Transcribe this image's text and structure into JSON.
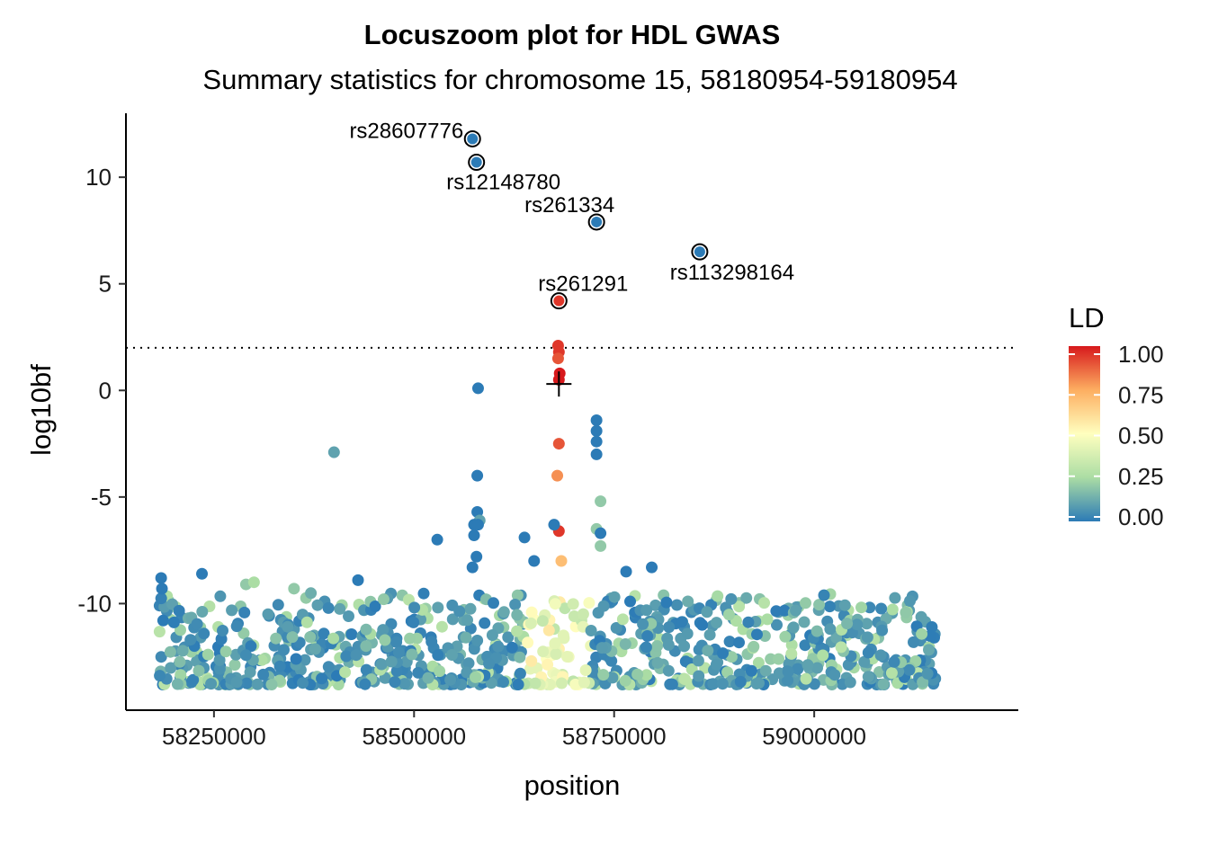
{
  "chart_data": {
    "type": "scatter",
    "title": "Locuszoom plot for HDL GWAS",
    "subtitle": "Summary statistics for chromosome 15, 58180954-59180954",
    "xlabel": "position",
    "ylabel": "log10bf",
    "xlim": [
      58140000,
      59255000
    ],
    "ylim": [
      -15,
      13
    ],
    "x_ticks": [
      58250000,
      58500000,
      58750000,
      59000000
    ],
    "x_tick_labels": [
      "58250000",
      "58500000",
      "58750000",
      "59000000"
    ],
    "y_ticks": [
      -10,
      -5,
      0,
      5,
      10
    ],
    "y_tick_labels": [
      "-10",
      "-5",
      "0",
      "5",
      "10"
    ],
    "threshold": 2,
    "grid": false,
    "legend": {
      "title": "LD",
      "position": "right",
      "ticks": [
        1.0,
        0.75,
        0.5,
        0.25,
        0.0
      ],
      "tick_labels": [
        "1.00",
        "0.75",
        "0.50",
        "0.25",
        "0.00"
      ],
      "palette": [
        "#2c7bb6",
        "#abdda4",
        "#ffffbf",
        "#fdae61",
        "#d7191c"
      ]
    },
    "lead_snp": {
      "x": 58681000,
      "y": 0.3
    },
    "labeled_points": [
      {
        "label": "rs28607776",
        "x": 58573000,
        "y": 11.8,
        "ld": 0.0
      },
      {
        "label": "rs12148780",
        "x": 58578000,
        "y": 10.7,
        "ld": 0.0
      },
      {
        "label": "rs261334",
        "x": 58728000,
        "y": 7.9,
        "ld": 0.0
      },
      {
        "label": "rs113298164",
        "x": 58857000,
        "y": 6.5,
        "ld": 0.0
      },
      {
        "label": "rs261291",
        "x": 58681000,
        "y": 4.2,
        "ld": 0.95
      }
    ],
    "points": [
      {
        "x": 58580000,
        "y": 0.1,
        "ld": 0.0
      },
      {
        "x": 58400000,
        "y": -2.9,
        "ld": 0.1
      },
      {
        "x": 58680000,
        "y": 2.1,
        "ld": 0.95
      },
      {
        "x": 58681000,
        "y": 1.8,
        "ld": 0.95
      },
      {
        "x": 58680000,
        "y": 1.5,
        "ld": 0.9
      },
      {
        "x": 58682000,
        "y": 0.8,
        "ld": 1.0
      },
      {
        "x": 58681000,
        "y": 0.5,
        "ld": 1.0
      },
      {
        "x": 58681000,
        "y": -2.5,
        "ld": 0.9
      },
      {
        "x": 58679000,
        "y": -4.0,
        "ld": 0.8
      },
      {
        "x": 58681000,
        "y": -6.6,
        "ld": 0.95
      },
      {
        "x": 58684000,
        "y": -8.0,
        "ld": 0.7
      },
      {
        "x": 58675000,
        "y": -6.3,
        "ld": 0.0
      },
      {
        "x": 58728000,
        "y": -1.4,
        "ld": 0.0
      },
      {
        "x": 58728000,
        "y": -1.9,
        "ld": 0.0
      },
      {
        "x": 58728000,
        "y": -2.4,
        "ld": 0.0
      },
      {
        "x": 58728000,
        "y": -3.0,
        "ld": 0.0
      },
      {
        "x": 58733000,
        "y": -5.2,
        "ld": 0.2
      },
      {
        "x": 58728000,
        "y": -6.5,
        "ld": 0.2
      },
      {
        "x": 58733000,
        "y": -6.7,
        "ld": 0.0
      },
      {
        "x": 58733000,
        "y": -7.3,
        "ld": 0.2
      },
      {
        "x": 58579000,
        "y": -4.0,
        "ld": 0.0
      },
      {
        "x": 58579000,
        "y": -5.7,
        "ld": 0.0
      },
      {
        "x": 58582000,
        "y": -6.1,
        "ld": 0.1
      },
      {
        "x": 58575000,
        "y": -6.3,
        "ld": 0.0
      },
      {
        "x": 58580000,
        "y": -6.3,
        "ld": 0.0
      },
      {
        "x": 58575000,
        "y": -6.8,
        "ld": 0.0
      },
      {
        "x": 58578000,
        "y": -7.8,
        "ld": 0.0
      },
      {
        "x": 58573000,
        "y": -8.3,
        "ld": 0.0
      },
      {
        "x": 58529000,
        "y": -7.0,
        "ld": 0.0
      },
      {
        "x": 58638000,
        "y": -6.9,
        "ld": 0.0
      },
      {
        "x": 58650000,
        "y": -8.0,
        "ld": 0.0
      },
      {
        "x": 58184000,
        "y": -8.8,
        "ld": 0.0
      },
      {
        "x": 58185000,
        "y": -9.3,
        "ld": 0.0
      },
      {
        "x": 58235000,
        "y": -8.6,
        "ld": 0.0
      },
      {
        "x": 58290000,
        "y": -9.1,
        "ld": 0.2
      },
      {
        "x": 58300000,
        "y": -9.0,
        "ld": 0.25
      },
      {
        "x": 58350000,
        "y": -9.3,
        "ld": 0.2
      },
      {
        "x": 58430000,
        "y": -8.9,
        "ld": 0.0
      },
      {
        "x": 58462000,
        "y": -9.8,
        "ld": 0.2
      },
      {
        "x": 58797000,
        "y": -8.3,
        "ld": 0.0
      },
      {
        "x": 58765000,
        "y": -8.5,
        "ld": 0.0
      },
      {
        "x": 58770000,
        "y": -9.9,
        "ld": 0.0
      },
      {
        "x": 58860000,
        "y": -11.0,
        "ld": 0.0
      }
    ],
    "noise_band": {
      "y_range": [
        -13.8,
        -9.5
      ],
      "count": 900,
      "seed": 7
    }
  }
}
